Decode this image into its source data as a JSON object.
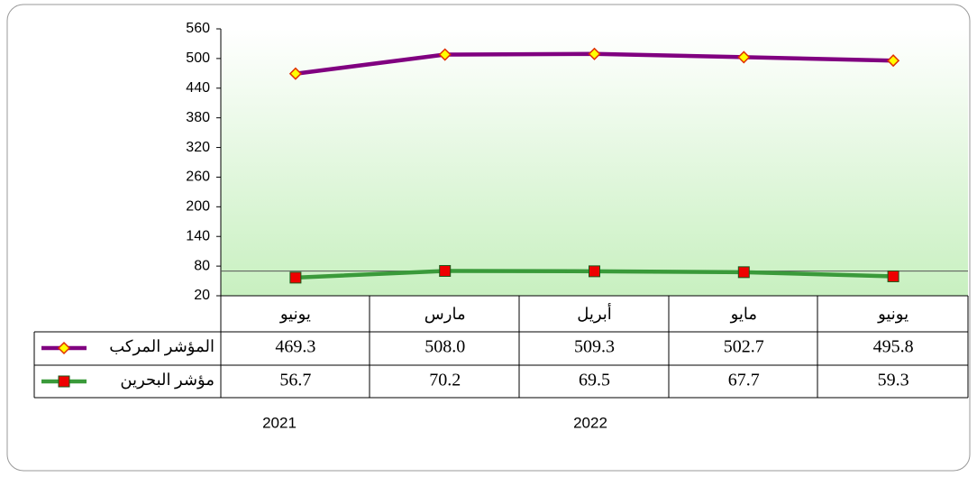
{
  "chart_data": {
    "type": "line",
    "categories": [
      "يونيو",
      "مارس",
      "أبريل",
      "مايو",
      "يونيو"
    ],
    "years": [
      "2021",
      "2022"
    ],
    "series": [
      {
        "name": "المؤشر المركب",
        "color": "#800080",
        "marker": "diamond",
        "marker_color": "#ffff00",
        "marker_edge": "#e03000",
        "values": [
          469.3,
          508.0,
          509.3,
          502.7,
          495.8
        ],
        "value_labels": [
          "469.3",
          "508.0",
          "509.3",
          "502.7",
          "495.8"
        ]
      },
      {
        "name": "مؤشر البحرين",
        "color": "#3a9a3a",
        "marker": "square",
        "marker_color": "#ee0000",
        "marker_edge": "#1a5a1a",
        "values": [
          56.7,
          70.2,
          69.5,
          67.7,
          59.3
        ],
        "value_labels": [
          "56.7",
          "70.2",
          "69.5",
          "67.7",
          "59.3"
        ]
      }
    ],
    "reference_line": 70,
    "ylim": [
      20,
      560
    ],
    "yticks": [
      20,
      80,
      140,
      200,
      260,
      320,
      380,
      440,
      500,
      560
    ]
  }
}
